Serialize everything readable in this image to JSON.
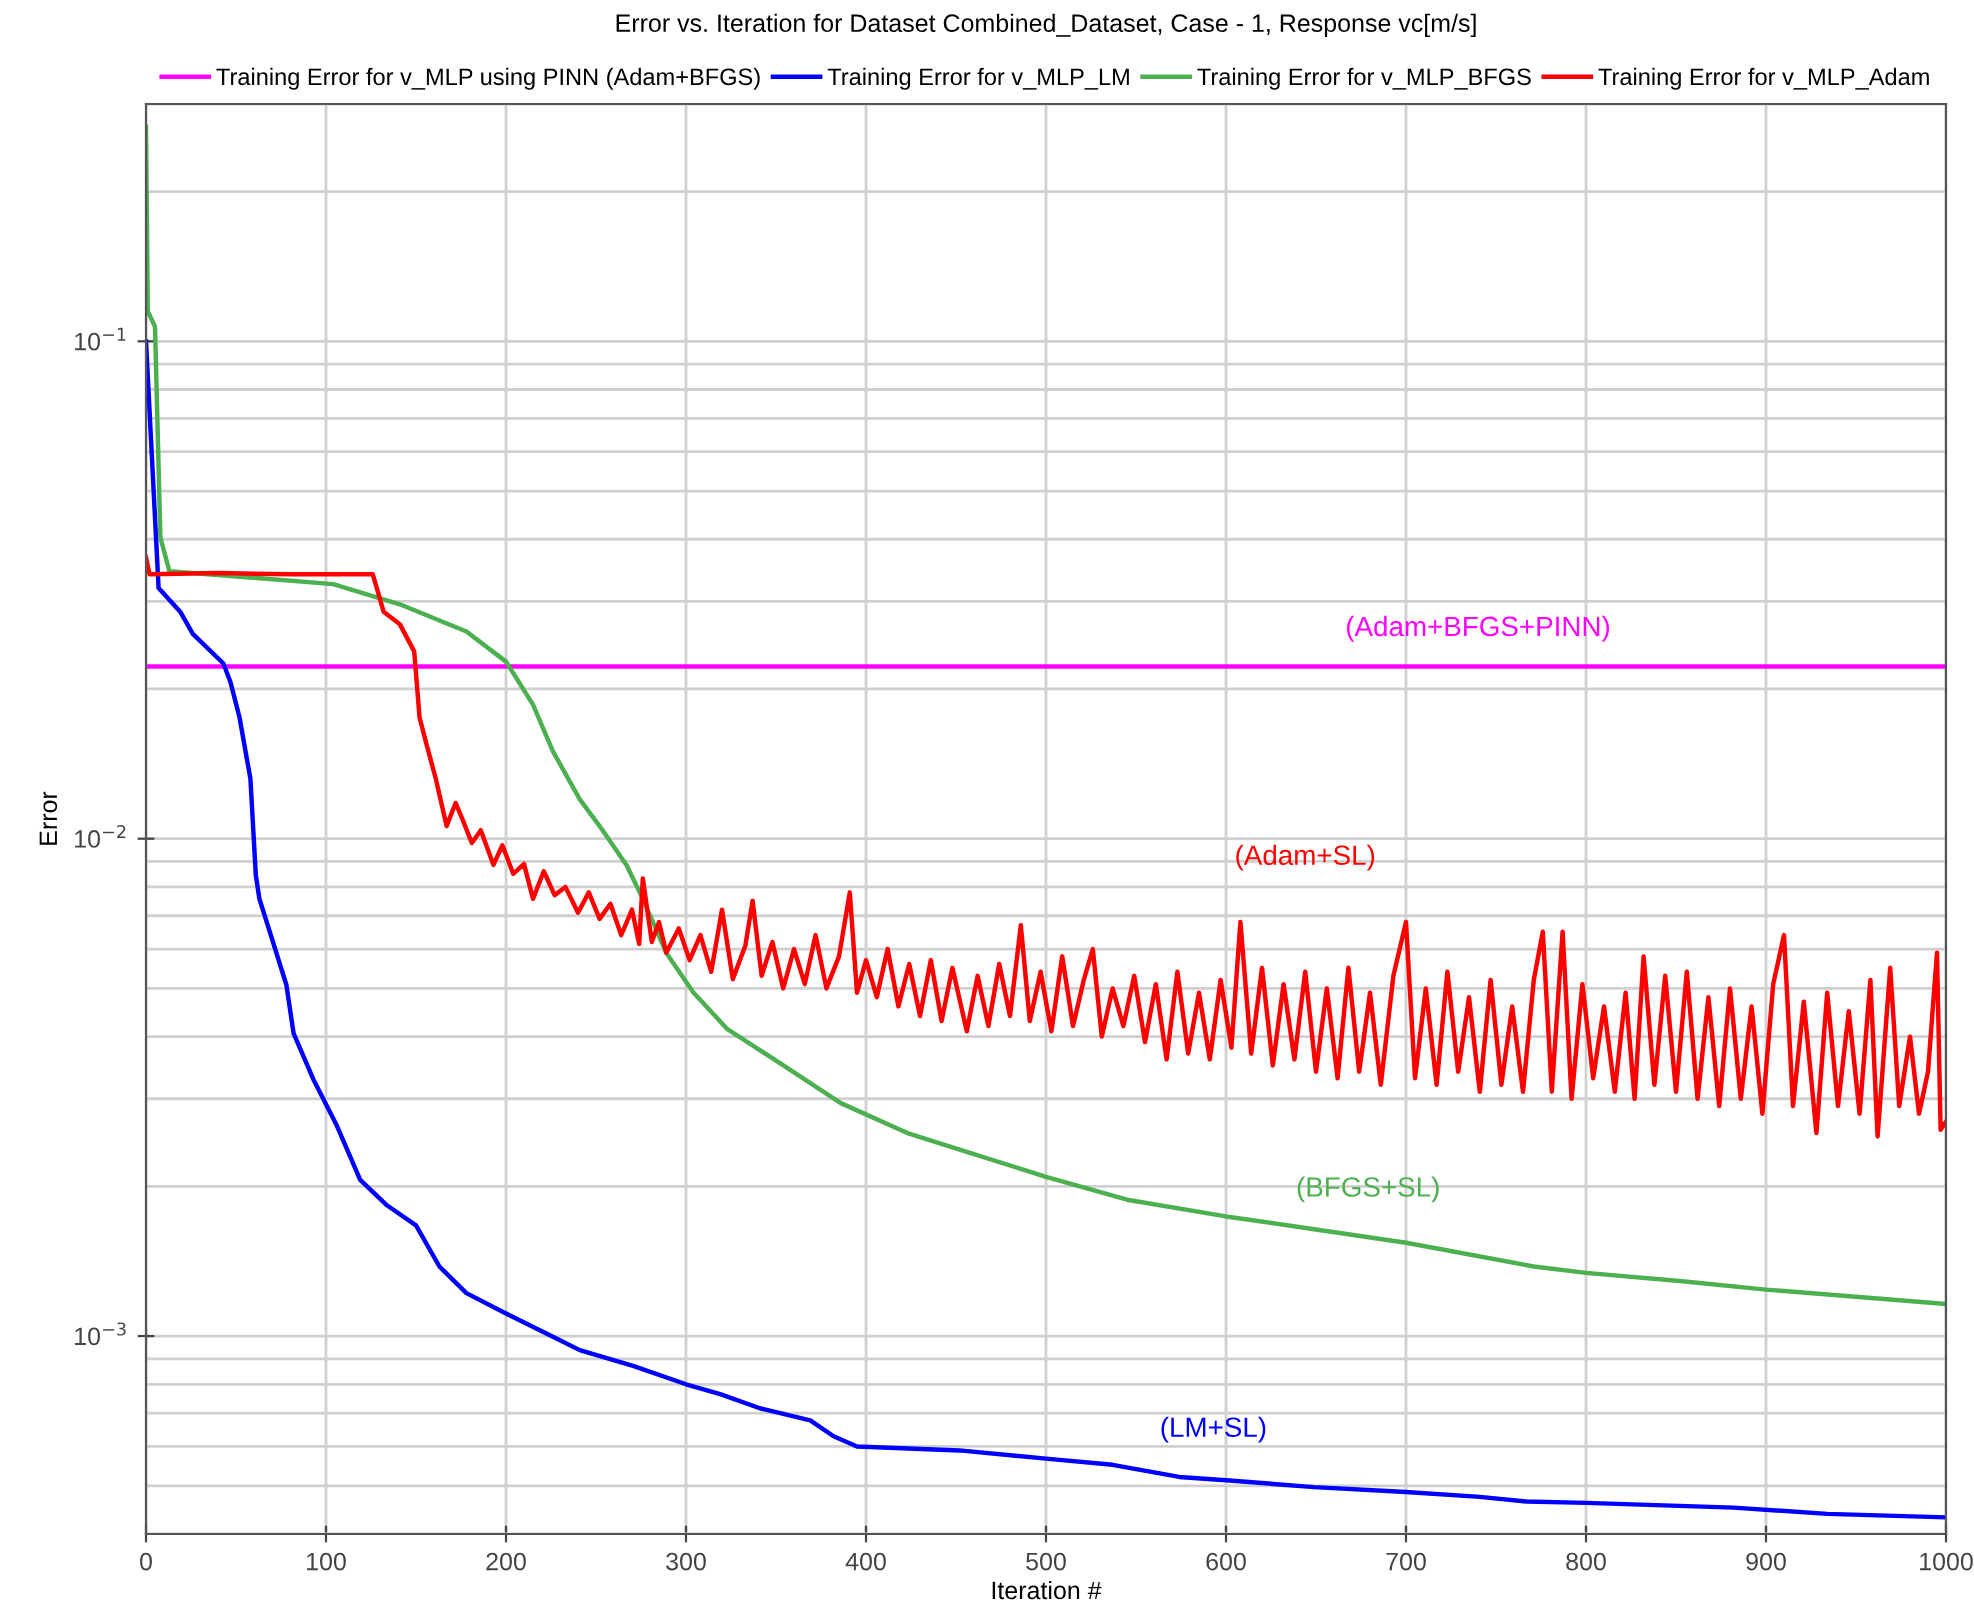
{
  "chart_data": {
    "type": "line",
    "title": "Error vs. Iteration for Dataset Combined_Dataset, Case - 1, Response vc[m/s]",
    "xlabel": "Iteration #",
    "ylabel": "Error",
    "log": "y",
    "grid": true,
    "legend": "top",
    "marker": "none",
    "line_style": "solid",
    "xlim": [
      0,
      1000
    ],
    "xticks": [
      0,
      100,
      200,
      300,
      400,
      500,
      600,
      700,
      800,
      900,
      1000
    ],
    "ylim": [
      0.0004,
      0.3
    ],
    "yticks": [
      {
        "value": 0.1,
        "label": "10$^{−1}$"
      },
      {
        "value": 0.01,
        "label": "10$^{−2}$"
      },
      {
        "value": 0.001,
        "label": "10$^{−3}$"
      }
    ],
    "series": [
      {
        "name": "Training Error for v_MLP using PINN (Adam+BFGS)",
        "color": "#ff00ff",
        "x": [
          0,
          1000
        ],
        "values": [
          0.0222,
          0.0222
        ]
      },
      {
        "name": "Training Error for v_MLP_LM",
        "color": "#0000ff",
        "x": [
          0,
          7,
          19,
          26,
          43,
          47,
          52,
          58,
          61,
          63,
          69,
          78,
          82,
          93,
          106,
          119,
          134,
          150,
          163,
          178,
          200,
          223,
          241,
          271,
          300,
          319,
          341,
          369,
          382,
          395,
          452,
          500,
          537,
          574,
          600,
          649,
          700,
          741,
          767,
          800,
          882,
          934,
          1000
        ],
        "values": [
          0.1,
          0.0319,
          0.0286,
          0.0258,
          0.0225,
          0.0206,
          0.0175,
          0.0132,
          0.00845,
          0.00757,
          0.00646,
          0.00508,
          0.00406,
          0.00328,
          0.00265,
          0.00206,
          0.00183,
          0.00167,
          0.00138,
          0.00122,
          0.00111,
          0.00101,
          0.000937,
          0.00087,
          0.0008,
          0.000764,
          0.000716,
          0.000677,
          0.000629,
          0.0006,
          0.000589,
          0.000567,
          0.000551,
          0.000521,
          0.000513,
          0.000497,
          0.000486,
          0.000475,
          0.000465,
          0.000462,
          0.000452,
          0.000439,
          0.000432
        ]
      },
      {
        "name": "Training Error for v_MLP_BFGS",
        "color": "#4caf50",
        "x": [
          0,
          1,
          5,
          8,
          13,
          104,
          141,
          178,
          200,
          215,
          226,
          241,
          252,
          267,
          276,
          289,
          304,
          323,
          349,
          386,
          423,
          452,
          500,
          545,
          600,
          649,
          700,
          771,
          800,
          852,
          900,
          1000
        ],
        "values": [
          0.27,
          0.115,
          0.107,
          0.0403,
          0.0345,
          0.0325,
          0.0296,
          0.0261,
          0.0227,
          0.0186,
          0.015,
          0.012,
          0.0106,
          0.00884,
          0.00757,
          0.0059,
          0.00491,
          0.00414,
          0.0036,
          0.00294,
          0.00256,
          0.00237,
          0.00209,
          0.00188,
          0.00174,
          0.00164,
          0.00154,
          0.00138,
          0.00134,
          0.00129,
          0.00124,
          0.00116
        ]
      },
      {
        "name": "Training Error for v_MLP_Adam",
        "color": "#ff0000",
        "x": [
          0,
          2,
          40,
          80,
          126,
          132,
          141,
          149,
          152,
          156,
          161,
          167,
          172,
          176,
          181,
          186,
          193,
          198,
          204,
          210,
          215,
          221,
          227,
          233,
          240,
          246,
          252,
          258,
          264,
          270,
          274,
          276,
          281,
          285,
          289,
          296,
          302,
          308,
          314,
          320,
          326,
          333,
          337,
          342,
          348,
          354,
          360,
          366,
          372,
          378,
          385,
          391,
          395,
          400,
          406,
          412,
          418,
          424,
          430,
          436,
          442,
          448,
          456,
          462,
          468,
          474,
          480,
          486,
          491,
          497,
          503,
          509,
          515,
          521,
          526,
          531,
          537,
          543,
          549,
          555,
          561,
          567,
          573,
          579,
          585,
          591,
          597,
          603,
          608,
          614,
          620,
          626,
          632,
          638,
          644,
          650,
          656,
          662,
          668,
          674,
          680,
          686,
          693,
          700,
          705,
          711,
          717,
          723,
          729,
          735,
          741,
          747,
          753,
          759,
          765,
          771,
          776,
          781,
          787,
          792,
          798,
          804,
          810,
          816,
          822,
          827,
          832,
          838,
          844,
          850,
          856,
          862,
          868,
          874,
          880,
          886,
          892,
          898,
          904,
          910,
          915,
          921,
          928,
          934,
          940,
          946,
          952,
          958,
          962,
          969,
          974,
          980,
          985,
          990,
          995,
          997,
          1000
        ],
        "values": [
          0.0367,
          0.034,
          0.0342,
          0.034,
          0.034,
          0.0286,
          0.027,
          0.0238,
          0.0175,
          0.0154,
          0.0132,
          0.0106,
          0.0118,
          0.0109,
          0.0098,
          0.0104,
          0.00886,
          0.0097,
          0.0085,
          0.0089,
          0.00757,
          0.0086,
          0.0077,
          0.008,
          0.0071,
          0.0078,
          0.0069,
          0.0074,
          0.0064,
          0.0072,
          0.00614,
          0.00832,
          0.0062,
          0.0068,
          0.0059,
          0.0066,
          0.0057,
          0.0064,
          0.0054,
          0.0072,
          0.00522,
          0.0061,
          0.0075,
          0.0053,
          0.0062,
          0.005,
          0.006,
          0.0051,
          0.0064,
          0.005,
          0.0058,
          0.0078,
          0.0049,
          0.0057,
          0.0048,
          0.006,
          0.0046,
          0.0056,
          0.0044,
          0.0057,
          0.0043,
          0.0055,
          0.0041,
          0.0053,
          0.0042,
          0.0056,
          0.0044,
          0.0067,
          0.0043,
          0.0054,
          0.0041,
          0.0058,
          0.0042,
          0.0052,
          0.006,
          0.004,
          0.005,
          0.0042,
          0.0053,
          0.0039,
          0.0051,
          0.0036,
          0.0054,
          0.0037,
          0.0049,
          0.0036,
          0.0052,
          0.0038,
          0.0068,
          0.0037,
          0.0055,
          0.0035,
          0.0051,
          0.0036,
          0.0054,
          0.0034,
          0.005,
          0.0033,
          0.0055,
          0.0034,
          0.0049,
          0.0032,
          0.0053,
          0.0068,
          0.0033,
          0.005,
          0.0032,
          0.0054,
          0.0034,
          0.0048,
          0.0031,
          0.0052,
          0.0032,
          0.0046,
          0.0031,
          0.0052,
          0.0065,
          0.0031,
          0.0065,
          0.003,
          0.0051,
          0.0033,
          0.0046,
          0.0031,
          0.0049,
          0.003,
          0.0058,
          0.0032,
          0.0053,
          0.0031,
          0.0054,
          0.003,
          0.0048,
          0.0029,
          0.005,
          0.003,
          0.0046,
          0.0028,
          0.0051,
          0.0064,
          0.0029,
          0.0047,
          0.00256,
          0.0049,
          0.0029,
          0.0045,
          0.0028,
          0.0052,
          0.00252,
          0.0055,
          0.0029,
          0.004,
          0.0028,
          0.0034,
          0.0059,
          0.0026,
          0.0027
        ]
      }
    ],
    "annotations": [
      "(Adam+BFGS+PINN)",
      "(Adam+SL)",
      "(BFGS+SL)",
      "(LM+SL)"
    ]
  }
}
